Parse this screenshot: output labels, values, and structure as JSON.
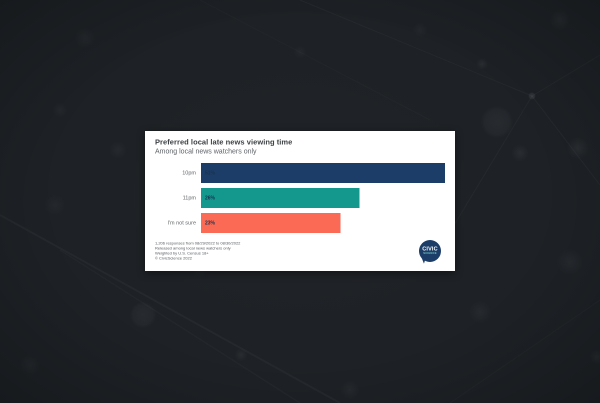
{
  "page": {
    "background_color": "#1d2125"
  },
  "card": {
    "title": "Preferred local late news viewing time",
    "subtitle": "Among local news watchers only",
    "footnote_lines": [
      "1,206 responses from 08/29/2022 to 08/30/2022",
      "Released among local news watchers only",
      "Weighted by U.S. Census 18+",
      "© CivicScience 2022"
    ],
    "logo": {
      "line1": "CIVIC",
      "line2": "SCIENCE",
      "bubble_color": "#1c3d68",
      "line1_color": "#ffffff",
      "line2_color": "#6fc7c0"
    }
  },
  "chart_data": {
    "type": "bar",
    "orientation": "horizontal",
    "title": "Preferred local late news viewing time",
    "subtitle": "Among local news watchers only",
    "categories": [
      "10pm",
      "11pm",
      "I'm not sure"
    ],
    "values": [
      51,
      26,
      23
    ],
    "value_labels": [
      "51%",
      "26%",
      "23%"
    ],
    "bar_colors": [
      "#1c3d68",
      "#14988e",
      "#fa6a54"
    ],
    "bar_width_pct": [
      100,
      65,
      57.2
    ],
    "value_label_color": "#1a334f",
    "xlim": [
      0,
      51
    ],
    "grid": false,
    "legend": false
  }
}
